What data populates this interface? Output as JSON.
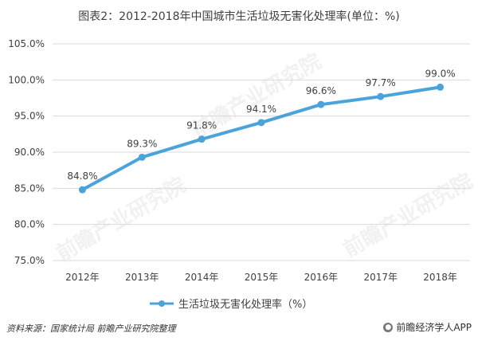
{
  "title": "图表2：2012-2018年中国城市生活垃圾无害化处理率(单位：%)",
  "source": "资料来源：国家统计局 前瞻产业研究院整理",
  "brand": "前瞻经济学人APP",
  "brand_icon": "brand-logo-icon",
  "watermark_text": "前瞻产业研究院",
  "colors": {
    "line": "#4BA3DC",
    "grid": "#D9D9D9",
    "text": "#404040"
  },
  "chart_data": {
    "type": "line",
    "categories": [
      "2012年",
      "2013年",
      "2014年",
      "2015年",
      "2016年",
      "2017年",
      "2018年"
    ],
    "series": [
      {
        "name": "生活垃圾无害化处理率（%）",
        "values": [
          84.8,
          89.3,
          91.8,
          94.1,
          96.6,
          97.7,
          99.0
        ]
      }
    ],
    "data_labels": [
      "84.8%",
      "89.3%",
      "91.8%",
      "94.1%",
      "96.6%",
      "97.7%",
      "99.0%"
    ],
    "yticks": [
      "75.0%",
      "80.0%",
      "85.0%",
      "90.0%",
      "95.0%",
      "100.0%",
      "105.0%"
    ],
    "ytick_values": [
      75,
      80,
      85,
      90,
      95,
      100,
      105
    ],
    "ylim": [
      75,
      105
    ],
    "grid": "horizontal",
    "legend": "bottom",
    "xlabel": "",
    "ylabel": ""
  }
}
